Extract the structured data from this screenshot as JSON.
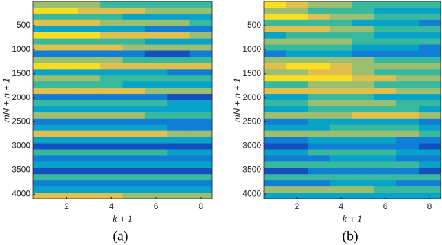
{
  "chart_data": [
    {
      "type": "heatmap",
      "caption": "(a)",
      "x_label": "k + 1",
      "y_label": "mN + n + 1",
      "colormap": "parula",
      "xlim": [
        0.5,
        8.5
      ],
      "ylim": [
        0.5,
        4096.5
      ],
      "y_reversed": true,
      "xticks": [
        2,
        4,
        6,
        8
      ],
      "yticks": [
        500,
        1000,
        1500,
        2000,
        2500,
        3000,
        3500,
        4000
      ],
      "z": [
        [
          6,
          6,
          6,
          5,
          5,
          5,
          5,
          5
        ],
        [
          8,
          8,
          7,
          7,
          7,
          6,
          6,
          6
        ],
        [
          5,
          5,
          5,
          5,
          4,
          4,
          4,
          4
        ],
        [
          7,
          7,
          7,
          6,
          6,
          6,
          6,
          5
        ],
        [
          4,
          4,
          4,
          4,
          4,
          3,
          3,
          3
        ],
        [
          8,
          8,
          8,
          7,
          7,
          7,
          7,
          6
        ],
        [
          5,
          5,
          5,
          5,
          5,
          4,
          4,
          4
        ],
        [
          7,
          7,
          7,
          7,
          6,
          6,
          6,
          6
        ],
        [
          3,
          3,
          3,
          3,
          3,
          2,
          2,
          3
        ],
        [
          6,
          6,
          6,
          6,
          5,
          5,
          5,
          5
        ],
        [
          8,
          8,
          8,
          7,
          7,
          7,
          7,
          7
        ],
        [
          4,
          4,
          4,
          4,
          4,
          4,
          3,
          3
        ],
        [
          6,
          6,
          6,
          5,
          5,
          5,
          5,
          5
        ],
        [
          5,
          5,
          5,
          5,
          4,
          4,
          4,
          4
        ],
        [
          7,
          7,
          7,
          7,
          7,
          6,
          6,
          6
        ],
        [
          3,
          3,
          3,
          3,
          3,
          3,
          2,
          2
        ],
        [
          5,
          5,
          5,
          5,
          5,
          5,
          4,
          4
        ],
        [
          4,
          4,
          4,
          4,
          4,
          4,
          4,
          4
        ],
        [
          6,
          6,
          6,
          6,
          6,
          5,
          5,
          5
        ],
        [
          3,
          3,
          3,
          3,
          3,
          3,
          3,
          3
        ],
        [
          4,
          4,
          4,
          4,
          4,
          4,
          3,
          3
        ],
        [
          7,
          7,
          7,
          7,
          7,
          7,
          6,
          6
        ],
        [
          4,
          4,
          4,
          4,
          4,
          4,
          4,
          4
        ],
        [
          2,
          2,
          2,
          2,
          2,
          2,
          2,
          2
        ],
        [
          5,
          5,
          5,
          5,
          5,
          5,
          4,
          4
        ],
        [
          3,
          3,
          3,
          3,
          3,
          3,
          3,
          3
        ],
        [
          4,
          4,
          4,
          4,
          4,
          4,
          4,
          4
        ],
        [
          2,
          2,
          2,
          2,
          2,
          2,
          2,
          2
        ],
        [
          5,
          5,
          5,
          5,
          5,
          5,
          5,
          5
        ],
        [
          3,
          3,
          3,
          3,
          3,
          3,
          3,
          3
        ],
        [
          4,
          4,
          4,
          4,
          4,
          4,
          4,
          4
        ],
        [
          7,
          7,
          7,
          7,
          6,
          6,
          6,
          6
        ]
      ]
    },
    {
      "type": "heatmap",
      "caption": "(b)",
      "x_label": "k + 1",
      "y_label": "mN + n + 1",
      "colormap": "parula",
      "xlim": [
        0.5,
        8.5
      ],
      "ylim": [
        0.5,
        4096.5
      ],
      "y_reversed": true,
      "xticks": [
        2,
        4,
        6,
        8
      ],
      "yticks": [
        500,
        1000,
        1500,
        2000,
        2500,
        3000,
        3500,
        4000
      ],
      "z": [
        [
          8,
          7,
          6,
          6,
          5,
          5,
          5,
          5
        ],
        [
          6,
          6,
          5,
          5,
          5,
          4,
          4,
          4
        ],
        [
          8,
          8,
          7,
          6,
          6,
          5,
          5,
          5
        ],
        [
          5,
          5,
          5,
          5,
          4,
          4,
          4,
          3
        ],
        [
          7,
          7,
          7,
          6,
          6,
          5,
          5,
          5
        ],
        [
          4,
          5,
          5,
          5,
          5,
          4,
          4,
          4
        ],
        [
          6,
          6,
          6,
          6,
          5,
          5,
          5,
          5
        ],
        [
          5,
          5,
          5,
          5,
          4,
          4,
          4,
          3
        ],
        [
          3,
          4,
          4,
          4,
          3,
          3,
          3,
          3
        ],
        [
          6,
          6,
          6,
          6,
          6,
          5,
          5,
          5
        ],
        [
          7,
          8,
          8,
          7,
          6,
          6,
          6,
          6
        ],
        [
          6,
          6,
          7,
          7,
          6,
          5,
          5,
          5
        ],
        [
          8,
          8,
          8,
          8,
          7,
          7,
          6,
          6
        ],
        [
          5,
          5,
          6,
          6,
          6,
          5,
          5,
          5
        ],
        [
          7,
          7,
          7,
          7,
          7,
          7,
          6,
          6
        ],
        [
          4,
          4,
          5,
          5,
          5,
          4,
          4,
          4
        ],
        [
          5,
          5,
          6,
          6,
          6,
          6,
          5,
          5
        ],
        [
          4,
          4,
          5,
          5,
          5,
          5,
          5,
          4
        ],
        [
          6,
          6,
          6,
          6,
          7,
          7,
          7,
          6
        ],
        [
          3,
          3,
          4,
          4,
          4,
          4,
          4,
          3
        ],
        [
          4,
          4,
          4,
          5,
          5,
          5,
          5,
          4
        ],
        [
          6,
          6,
          6,
          6,
          6,
          6,
          6,
          5
        ],
        [
          3,
          3,
          4,
          4,
          4,
          4,
          3,
          3
        ],
        [
          2,
          2,
          3,
          3,
          3,
          3,
          3,
          2
        ],
        [
          4,
          4,
          5,
          5,
          5,
          5,
          4,
          4
        ],
        [
          3,
          3,
          3,
          4,
          4,
          4,
          3,
          3
        ],
        [
          5,
          5,
          5,
          5,
          5,
          5,
          5,
          4
        ],
        [
          2,
          2,
          3,
          3,
          3,
          3,
          3,
          2
        ],
        [
          5,
          5,
          5,
          5,
          5,
          5,
          5,
          5
        ],
        [
          3,
          3,
          3,
          4,
          4,
          4,
          3,
          3
        ],
        [
          6,
          6,
          6,
          6,
          6,
          5,
          5,
          5
        ],
        [
          4,
          4,
          4,
          4,
          4,
          4,
          4,
          4
        ]
      ]
    }
  ]
}
